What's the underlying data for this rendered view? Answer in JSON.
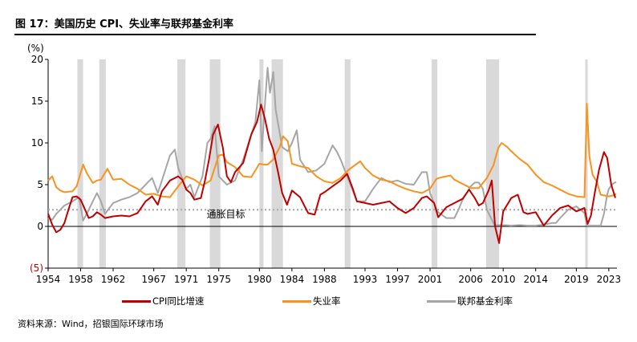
{
  "title": "图 17：美国历史 CPI、失业率与联邦基金利率",
  "source": "资料来源：Wind，招银国际环球市场",
  "colors": {
    "cpi": "#c00000",
    "unemployment": "#f7931e",
    "fed_funds": "#a6a6a6",
    "recession": "#d9d9d9",
    "target_line": "#a6a6a6",
    "negative_label": "#c00000"
  },
  "chart_data": {
    "type": "line",
    "title": "",
    "xlabel": "",
    "ylabel": "(%)",
    "xlim": [
      1954,
      2024
    ],
    "ylim": [
      -5,
      20
    ],
    "y_ticks": [
      -5,
      0,
      5,
      10,
      15,
      20
    ],
    "y_tick_labels": [
      "(5)",
      "0",
      "5",
      "10",
      "15",
      "20"
    ],
    "x_ticks": [
      1954,
      1958,
      1962,
      1967,
      1971,
      1975,
      1980,
      1984,
      1988,
      1993,
      1997,
      2001,
      2006,
      2010,
      2014,
      2019,
      2023
    ],
    "grid": false,
    "legend_position": "bottom",
    "recession_periods": [
      [
        1957.6,
        1958.3
      ],
      [
        1960.3,
        1961.1
      ],
      [
        1969.9,
        1970.9
      ],
      [
        1973.9,
        1975.2
      ],
      [
        1980.0,
        1980.5
      ],
      [
        1981.5,
        1982.9
      ],
      [
        1990.5,
        1991.2
      ],
      [
        2001.2,
        2001.9
      ],
      [
        2007.9,
        2009.5
      ],
      [
        2020.1,
        2020.4
      ]
    ],
    "annotations": [
      {
        "text": "通胀目标",
        "x": 1973.5,
        "y": 2
      }
    ],
    "reference_line": {
      "y": 2
    },
    "series": [
      {
        "name": "CPI同比增速",
        "x": [
          1954,
          1954.5,
          1955,
          1955.5,
          1956,
          1956.5,
          1957,
          1957.5,
          1958,
          1958.5,
          1959,
          1959.5,
          1960,
          1960.5,
          1961,
          1962,
          1963,
          1964,
          1965,
          1966,
          1966.8,
          1967.5,
          1968,
          1969,
          1970,
          1970.5,
          1971,
          1971.5,
          1972,
          1972.8,
          1973.3,
          1973.8,
          1974.3,
          1974.9,
          1975.5,
          1976,
          1976.5,
          1977,
          1978,
          1979,
          1979.7,
          1980.2,
          1980.7,
          1981.2,
          1981.7,
          1982.3,
          1982.8,
          1983.4,
          1984,
          1985,
          1986,
          1986.8,
          1987.5,
          1988,
          1989,
          1990,
          1990.8,
          1991.5,
          1992,
          1993,
          1994,
          1995,
          1996,
          1997,
          1998,
          1999,
          2000,
          2000.6,
          2001.5,
          2002,
          2003,
          2004,
          2005,
          2005.8,
          2006.5,
          2007,
          2007.5,
          2008.2,
          2008.6,
          2009,
          2009.5,
          2010,
          2011,
          2011.8,
          2012.5,
          2013,
          2014,
          2015,
          2016,
          2017,
          2018,
          2019,
          2020,
          2020.4,
          2020.8,
          2021.3,
          2021.8,
          2022.4,
          2022.8,
          2023.3,
          2023.8
        ],
        "values": [
          1.5,
          0.2,
          -0.7,
          -0.4,
          0.4,
          2.0,
          3.5,
          3.6,
          3.2,
          2.1,
          1.0,
          1.2,
          1.7,
          1.4,
          1.0,
          1.2,
          1.3,
          1.2,
          1.6,
          3.0,
          3.6,
          2.6,
          4.2,
          5.5,
          6.0,
          5.6,
          4.4,
          4.0,
          3.2,
          3.4,
          5.5,
          8.0,
          11.0,
          12.2,
          9.4,
          6.0,
          5.3,
          6.5,
          7.6,
          11.0,
          12.5,
          14.6,
          12.8,
          10.5,
          9.2,
          6.5,
          4.0,
          2.6,
          4.3,
          3.5,
          1.6,
          1.4,
          3.8,
          4.1,
          4.8,
          5.5,
          6.3,
          4.5,
          3.0,
          2.8,
          2.6,
          2.8,
          3.0,
          2.2,
          1.6,
          2.2,
          3.4,
          3.6,
          2.8,
          1.1,
          2.3,
          2.8,
          3.3,
          4.4,
          3.4,
          2.5,
          2.8,
          4.3,
          5.5,
          0.0,
          -2.0,
          1.8,
          3.4,
          3.8,
          1.7,
          1.5,
          1.7,
          0.1,
          1.3,
          2.2,
          2.5,
          1.8,
          2.2,
          0.3,
          1.3,
          4.2,
          6.8,
          8.9,
          8.2,
          5.0,
          3.4
        ]
      },
      {
        "name": "失业率",
        "x": [
          1954,
          1954.5,
          1955,
          1955.5,
          1956,
          1957,
          1957.5,
          1958.3,
          1958.8,
          1959.5,
          1960,
          1960.5,
          1961.3,
          1962,
          1963,
          1964,
          1965,
          1966,
          1967,
          1968,
          1969,
          1970,
          1971,
          1972,
          1973,
          1974,
          1975,
          1975.5,
          1976,
          1977,
          1978,
          1979,
          1980,
          1980.6,
          1981,
          1981.7,
          1982.5,
          1982.9,
          1983.5,
          1984,
          1985,
          1986,
          1987,
          1988,
          1989,
          1990,
          1991,
          1992.4,
          1993,
          1994,
          1995,
          1996,
          1997,
          1998,
          1999,
          2000,
          2001,
          2001.8,
          2002.5,
          2003.5,
          2004,
          2005,
          2006,
          2007,
          2008,
          2008.8,
          2009.4,
          2009.8,
          2010.5,
          2011,
          2012,
          2013,
          2014,
          2015,
          2016,
          2017,
          2018,
          2019,
          2020.0,
          2020.3,
          2020.6,
          2021,
          2021.5,
          2022,
          2023,
          2023.5,
          2023.9
        ],
        "values": [
          5.5,
          6.0,
          4.7,
          4.3,
          4.1,
          4.2,
          4.8,
          7.4,
          6.3,
          5.2,
          5.5,
          5.6,
          6.9,
          5.6,
          5.7,
          5.0,
          4.5,
          3.8,
          3.9,
          3.6,
          3.5,
          4.8,
          6.0,
          5.6,
          4.9,
          5.5,
          8.5,
          8.6,
          7.7,
          7.1,
          6.0,
          5.9,
          7.5,
          7.4,
          7.4,
          8.0,
          9.5,
          10.8,
          10.2,
          7.5,
          7.2,
          7.0,
          6.0,
          5.4,
          5.2,
          5.8,
          6.8,
          7.8,
          7.0,
          6.1,
          5.6,
          5.4,
          4.9,
          4.5,
          4.2,
          4.0,
          4.5,
          5.7,
          5.9,
          6.1,
          5.6,
          5.1,
          4.6,
          4.6,
          5.8,
          7.3,
          9.4,
          10.0,
          9.5,
          9.0,
          8.1,
          7.4,
          6.2,
          5.3,
          4.9,
          4.4,
          3.9,
          3.6,
          3.5,
          14.7,
          8.4,
          6.2,
          5.4,
          3.8,
          3.6,
          3.7,
          3.9
        ]
      },
      {
        "name": "联邦基金利率",
        "x": [
          1954,
          1954.5,
          1955,
          1955.5,
          1956,
          1957,
          1957.8,
          1958.3,
          1958.8,
          1959.5,
          1960,
          1960.5,
          1961,
          1962,
          1963,
          1964,
          1965,
          1966,
          1966.8,
          1967.5,
          1968,
          1969,
          1969.6,
          1970,
          1971,
          1971.5,
          1972,
          1973,
          1973.6,
          1974,
          1974.5,
          1975,
          1976,
          1977,
          1978,
          1979,
          1979.5,
          1980.0,
          1980.3,
          1980.6,
          1981.0,
          1981.3,
          1981.7,
          1982,
          1982.8,
          1983.5,
          1984,
          1984.6,
          1985,
          1986,
          1987,
          1988,
          1989,
          1989.5,
          1990,
          1991,
          1992,
          1993,
          1994,
          1995,
          1996,
          1997,
          1998,
          1999,
          2000,
          2000.6,
          2001,
          2001.9,
          2002,
          2003,
          2004,
          2004.5,
          2005,
          2006,
          2006.5,
          2007,
          2007.5,
          2008,
          2008.9,
          2009,
          2010,
          2011,
          2012,
          2013,
          2014,
          2015,
          2016,
          2016.5,
          2017,
          2018,
          2019,
          2019.5,
          2020,
          2020.3,
          2021,
          2022,
          2022.4,
          2022.8,
          2023,
          2023.5,
          2023.9
        ],
        "values": [
          1.0,
          0.8,
          1.5,
          2.0,
          2.5,
          3.0,
          3.5,
          0.7,
          1.6,
          3.0,
          4.0,
          3.0,
          1.5,
          2.8,
          3.2,
          3.5,
          4.0,
          5.0,
          5.8,
          4.0,
          5.5,
          8.5,
          9.2,
          7.0,
          4.5,
          5.0,
          3.5,
          6.0,
          10.0,
          10.5,
          12.0,
          6.0,
          5.0,
          5.5,
          8.0,
          11.0,
          12.5,
          17.5,
          9.0,
          13.5,
          19.0,
          16.0,
          18.5,
          14.0,
          9.5,
          9.0,
          10.0,
          11.5,
          8.0,
          6.5,
          6.7,
          7.5,
          9.7,
          9.0,
          8.0,
          5.5,
          3.0,
          3.0,
          4.5,
          5.8,
          5.3,
          5.5,
          5.1,
          5.0,
          6.5,
          6.5,
          4.0,
          1.8,
          1.7,
          1.0,
          1.0,
          2.0,
          3.2,
          4.8,
          5.25,
          5.25,
          4.5,
          2.0,
          0.2,
          0.15,
          0.15,
          0.1,
          0.15,
          0.1,
          0.1,
          0.2,
          0.4,
          0.4,
          1.0,
          2.0,
          2.4,
          2.0,
          1.6,
          0.1,
          0.1,
          0.1,
          1.5,
          3.8,
          4.5,
          5.1,
          5.33
        ]
      }
    ]
  }
}
